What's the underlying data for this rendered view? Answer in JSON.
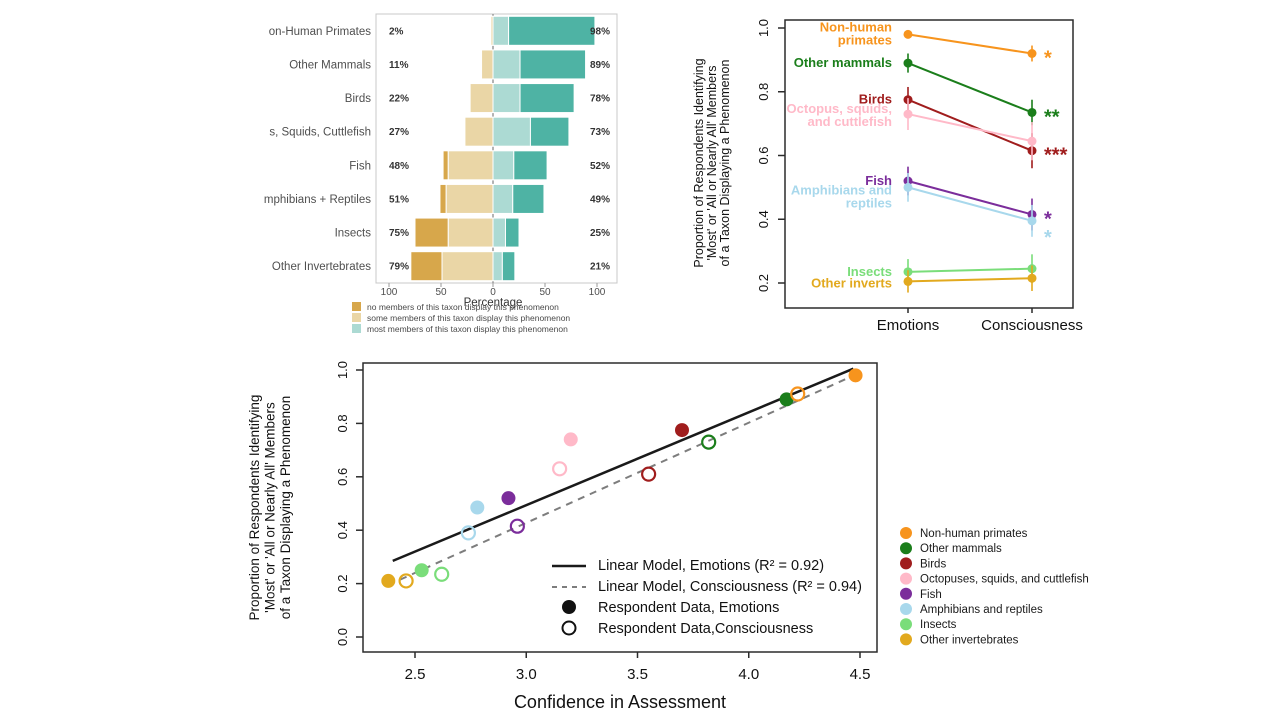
{
  "figure": {
    "background": "#ffffff"
  },
  "colors": {
    "taxa": {
      "non_human_primates": "#F7941D",
      "other_mammals": "#1B7E1B",
      "birds": "#A01D1D",
      "octopuses": "#FFB9C8",
      "fish": "#7B2D9B",
      "amphibians": "#A8D8EC",
      "insects": "#7ADD7A",
      "other_invertebrates": "#E2A91E"
    },
    "likert": {
      "no_members": "#D7A74B",
      "some_members": "#EAD6A6",
      "most_members": "#ACDAD3",
      "all_members": "#4EB3A4"
    },
    "frame": "#2b2b2b",
    "light_frame": "#c8c8c8",
    "dashed_line": "#7d7d7d",
    "solid_line": "#1a1a1a"
  },
  "chart_data": [
    {
      "id": "likert_bars",
      "type": "bar",
      "orientation": "horizontal-diverging",
      "xlabel": "Percentage",
      "x_ticks": [
        {
          "v": -100,
          "label": "100"
        },
        {
          "v": -50,
          "label": "50"
        },
        {
          "v": 0,
          "label": "0"
        },
        {
          "v": 50,
          "label": "50"
        },
        {
          "v": 100,
          "label": "100"
        }
      ],
      "xlim": [
        -113,
        120
      ],
      "rows": [
        {
          "label": "on-Human Primates",
          "left_pct": "2%",
          "right_pct": "98%",
          "no": 0,
          "some": 2,
          "most": 15,
          "all": 83
        },
        {
          "label": "Other Mammals",
          "left_pct": "11%",
          "right_pct": "89%",
          "no": 0,
          "some": 11,
          "most": 26,
          "all": 63
        },
        {
          "label": "Birds",
          "left_pct": "22%",
          "right_pct": "78%",
          "no": 0,
          "some": 22,
          "most": 26,
          "all": 52
        },
        {
          "label": "s, Squids, Cuttlefish",
          "left_pct": "27%",
          "right_pct": "73%",
          "no": 0,
          "some": 27,
          "most": 36,
          "all": 37
        },
        {
          "label": "Fish",
          "left_pct": "48%",
          "right_pct": "52%",
          "no": 5,
          "some": 43,
          "most": 20,
          "all": 32
        },
        {
          "label": "mphibians + Reptiles",
          "left_pct": "51%",
          "right_pct": "49%",
          "no": 6,
          "some": 45,
          "most": 19,
          "all": 30
        },
        {
          "label": "Insects",
          "left_pct": "75%",
          "right_pct": "25%",
          "no": 32,
          "some": 43,
          "most": 12,
          "all": 13
        },
        {
          "label": "Other Invertebrates",
          "left_pct": "79%",
          "right_pct": "21%",
          "no": 30,
          "some": 49,
          "most": 9,
          "all": 12
        }
      ],
      "legend": [
        {
          "color_key": "no_members",
          "label": "no members of this taxon display this phenomenon"
        },
        {
          "color_key": "some_members",
          "label": "some members of this taxon display this phenomenon"
        },
        {
          "color_key": "most_members",
          "label": "most members of this taxon display this phenomenon"
        }
      ]
    },
    {
      "id": "slope_chart",
      "type": "line",
      "ylabel_lines": [
        "Proportion of Respondents Identifying",
        "'Most' or 'All or Nearly All' Members",
        "of a Taxon Displaying a Phenomenon"
      ],
      "x_categories": [
        "Emotions",
        "Consciousness"
      ],
      "y_ticks": [
        0.2,
        0.4,
        0.6,
        0.8,
        1.0
      ],
      "ylim": [
        0.125,
        1.03
      ],
      "series": [
        {
          "taxon": "non_human_primates",
          "label_lines": [
            "Non-human",
            "primates"
          ],
          "label_dy": 0,
          "emotions": 0.98,
          "consciousness": 0.92,
          "err_e": 0.012,
          "err_c": 0.025,
          "stars": "*",
          "star_dy": 0
        },
        {
          "taxon": "other_mammals",
          "label_lines": [
            "Other mammals"
          ],
          "label_dy": 0,
          "emotions": 0.89,
          "consciousness": 0.735,
          "err_e": 0.03,
          "err_c": 0.04,
          "stars": "**",
          "star_dy": 0
        },
        {
          "taxon": "birds",
          "label_lines": [
            "Birds"
          ],
          "label_dy": 0,
          "emotions": 0.775,
          "consciousness": 0.615,
          "err_e": 0.04,
          "err_c": 0.055,
          "stars": "***",
          "star_dy": 0
        },
        {
          "taxon": "octopuses",
          "label_lines": [
            "Octopus, squids,",
            "and cuttlefish"
          ],
          "label_dy": 2,
          "emotions": 0.73,
          "consciousness": 0.645,
          "err_e": 0.05,
          "err_c": 0.06,
          "stars": "",
          "star_dy": 0
        },
        {
          "taxon": "fish",
          "label_lines": [
            "Fish"
          ],
          "label_dy": 0,
          "emotions": 0.52,
          "consciousness": 0.415,
          "err_e": 0.045,
          "err_c": 0.05,
          "stars": "*",
          "star_dy": 0
        },
        {
          "taxon": "amphibians",
          "label_lines": [
            "Amphibians and",
            "reptiles"
          ],
          "label_dy": 10,
          "emotions": 0.5,
          "consciousness": 0.395,
          "err_e": 0.045,
          "err_c": 0.05,
          "stars": "*",
          "star_dy": 12
        },
        {
          "taxon": "insects",
          "label_lines": [
            "Insects"
          ],
          "label_dy": 0,
          "emotions": 0.235,
          "consciousness": 0.245,
          "err_e": 0.04,
          "err_c": 0.045,
          "stars": "",
          "star_dy": 0
        },
        {
          "taxon": "other_invertebrates",
          "label_lines": [
            "Other inverts"
          ],
          "label_dy": 2,
          "emotions": 0.205,
          "consciousness": 0.215,
          "err_e": 0.035,
          "err_c": 0.04,
          "stars": "",
          "star_dy": 0
        }
      ]
    },
    {
      "id": "scatter",
      "type": "scatter",
      "xlabel": "Confidence in Assessment",
      "ylabel_lines": [
        "Proportion of Respondents Identifying",
        "'Most' or 'All or Nearly All' Members",
        "of a Taxon Displaying a Phenomenon"
      ],
      "x_ticks": [
        2.5,
        3.0,
        3.5,
        4.0,
        4.5
      ],
      "y_ticks": [
        0.0,
        0.2,
        0.4,
        0.6,
        0.8,
        1.0
      ],
      "xlim": [
        2.27,
        4.58
      ],
      "ylim": [
        -0.05,
        1.03
      ],
      "points": [
        {
          "taxon": "non_human_primates",
          "series": "emotions",
          "x": 4.48,
          "y": 0.98
        },
        {
          "taxon": "non_human_primates",
          "series": "consciousness",
          "x": 4.22,
          "y": 0.91
        },
        {
          "taxon": "other_mammals",
          "series": "emotions",
          "x": 4.17,
          "y": 0.89
        },
        {
          "taxon": "other_mammals",
          "series": "consciousness",
          "x": 3.82,
          "y": 0.73
        },
        {
          "taxon": "birds",
          "series": "emotions",
          "x": 3.7,
          "y": 0.775
        },
        {
          "taxon": "birds",
          "series": "consciousness",
          "x": 3.55,
          "y": 0.61
        },
        {
          "taxon": "octopuses",
          "series": "emotions",
          "x": 3.2,
          "y": 0.74
        },
        {
          "taxon": "octopuses",
          "series": "consciousness",
          "x": 3.15,
          "y": 0.63
        },
        {
          "taxon": "fish",
          "series": "emotions",
          "x": 2.92,
          "y": 0.52
        },
        {
          "taxon": "fish",
          "series": "consciousness",
          "x": 2.96,
          "y": 0.415
        },
        {
          "taxon": "amphibians",
          "series": "emotions",
          "x": 2.78,
          "y": 0.485
        },
        {
          "taxon": "amphibians",
          "series": "consciousness",
          "x": 2.74,
          "y": 0.39
        },
        {
          "taxon": "insects",
          "series": "emotions",
          "x": 2.53,
          "y": 0.25
        },
        {
          "taxon": "insects",
          "series": "consciousness",
          "x": 2.62,
          "y": 0.235
        },
        {
          "taxon": "other_invertebrates",
          "series": "emotions",
          "x": 2.38,
          "y": 0.21
        },
        {
          "taxon": "other_invertebrates",
          "series": "consciousness",
          "x": 2.46,
          "y": 0.21
        }
      ],
      "lines": [
        {
          "style": "solid",
          "x1": 2.4,
          "y1": 0.285,
          "x2": 4.47,
          "y2": 1.005
        },
        {
          "style": "dashed",
          "x1": 2.38,
          "y1": 0.195,
          "x2": 4.5,
          "y2": 0.99
        }
      ],
      "legend_inplot": [
        {
          "marker": "line-solid",
          "label": "Linear Model, Emotions (R² = 0.92)"
        },
        {
          "marker": "line-dashed",
          "label": "Linear Model, Consciousness (R² = 0.94)"
        },
        {
          "marker": "dot-filled",
          "label": "Respondent Data, Emotions"
        },
        {
          "marker": "dot-open",
          "label": "Respondent Data,Consciousness"
        }
      ],
      "legend_right": [
        {
          "taxon": "non_human_primates",
          "label": "Non-human primates"
        },
        {
          "taxon": "other_mammals",
          "label": "Other mammals"
        },
        {
          "taxon": "birds",
          "label": "Birds"
        },
        {
          "taxon": "octopuses",
          "label": "Octopuses, squids, and cuttlefish"
        },
        {
          "taxon": "fish",
          "label": "Fish"
        },
        {
          "taxon": "amphibians",
          "label": "Amphibians and reptiles"
        },
        {
          "taxon": "insects",
          "label": "Insects"
        },
        {
          "taxon": "other_invertebrates",
          "label": "Other invertebrates"
        }
      ]
    }
  ]
}
